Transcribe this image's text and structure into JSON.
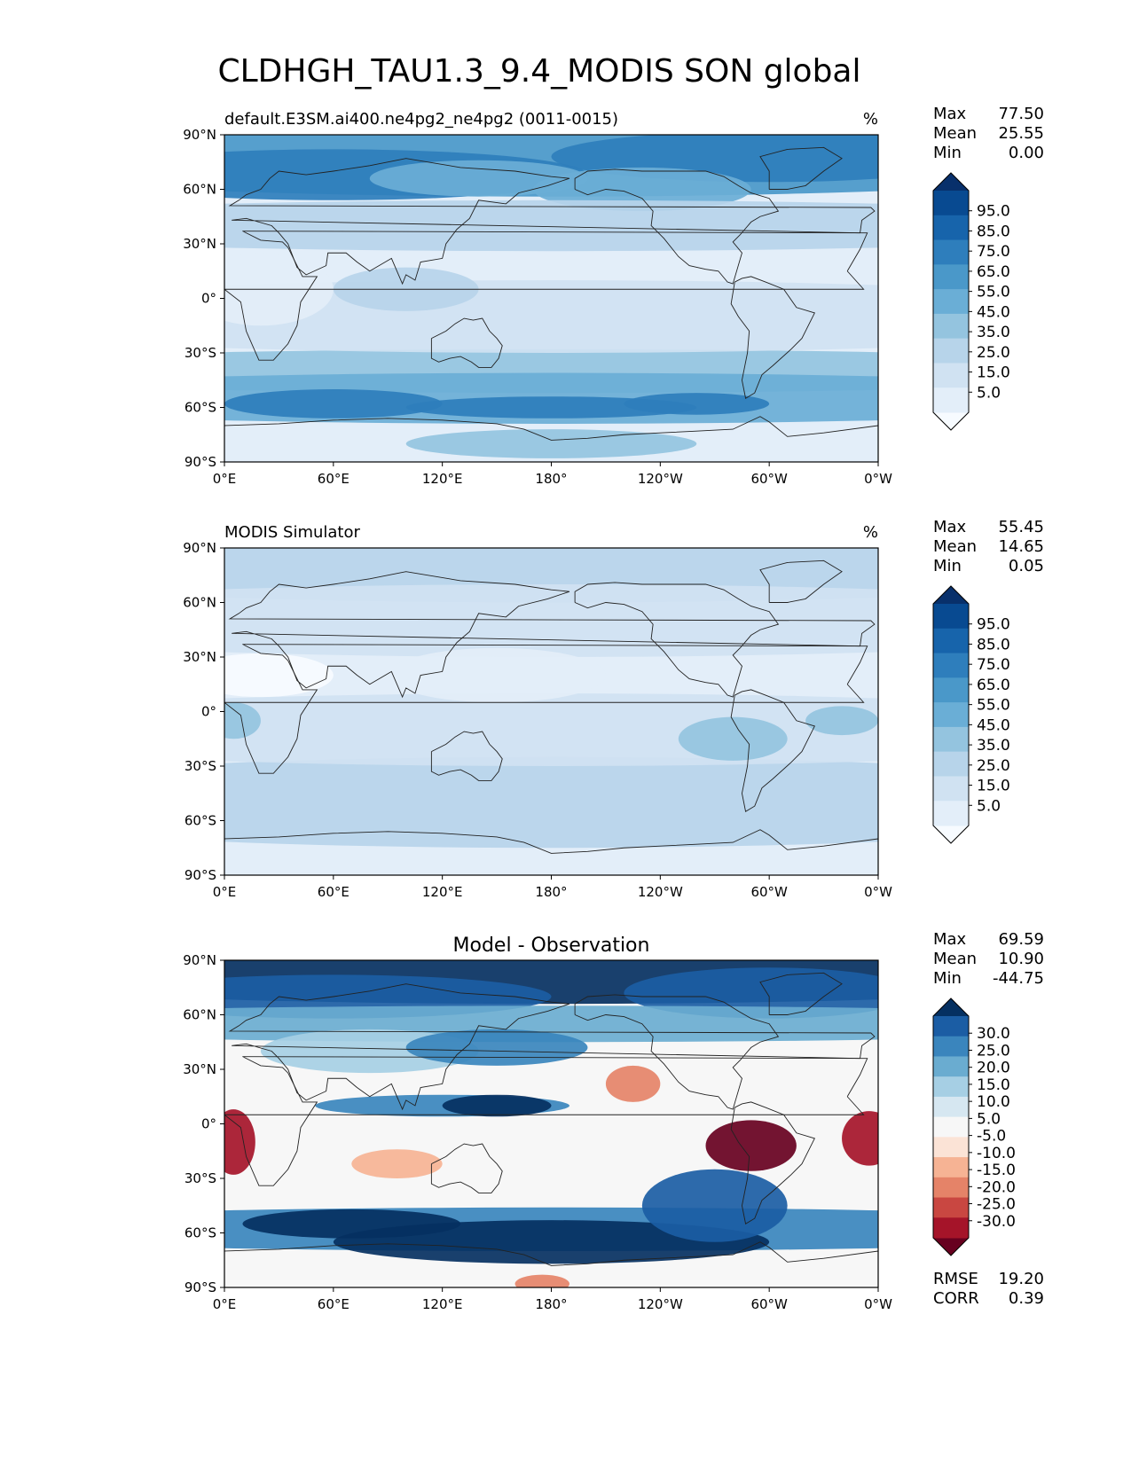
{
  "figure": {
    "title": "CLDHGH_TAU1.3_9.4_MODIS SON global"
  },
  "axes": {
    "lat_ticks": [
      "90°N",
      "60°N",
      "30°N",
      "0°",
      "30°S",
      "60°S",
      "90°S"
    ],
    "lon_ticks": [
      "0°E",
      "60°E",
      "120°E",
      "180°",
      "120°W",
      "60°W",
      "0°W"
    ]
  },
  "panels": [
    {
      "title": "default.E3SM.ai400.ne4pg2_ne4pg2 (0011-0015)",
      "units": "%",
      "stats": [
        {
          "label": "Max",
          "value": "77.50"
        },
        {
          "label": "Mean",
          "value": "25.55"
        },
        {
          "label": "Min",
          "value": "0.00"
        }
      ],
      "colorbar_labels": [
        "95.0",
        "85.0",
        "75.0",
        "65.0",
        "55.0",
        "45.0",
        "35.0",
        "25.0",
        "15.0",
        "5.0"
      ],
      "colorbar_colors": [
        "#f7fbff",
        "#e3eef9",
        "#d0e2f2",
        "#b7d4ea",
        "#94c4df",
        "#6aaed6",
        "#4a98c9",
        "#2e7ebc",
        "#1764ab",
        "#084a91",
        "#08306b"
      ]
    },
    {
      "title": "MODIS Simulator",
      "units": "%",
      "stats": [
        {
          "label": "Max",
          "value": "55.45"
        },
        {
          "label": "Mean",
          "value": "14.65"
        },
        {
          "label": "Min",
          "value": "0.05"
        }
      ],
      "colorbar_labels": [
        "95.0",
        "85.0",
        "75.0",
        "65.0",
        "55.0",
        "45.0",
        "35.0",
        "25.0",
        "15.0",
        "5.0"
      ],
      "colorbar_colors": [
        "#f7fbff",
        "#e3eef9",
        "#d0e2f2",
        "#b7d4ea",
        "#94c4df",
        "#6aaed6",
        "#4a98c9",
        "#2e7ebc",
        "#1764ab",
        "#084a91",
        "#08306b"
      ]
    },
    {
      "title": "Model - Observation",
      "units": "",
      "stats": [
        {
          "label": "Max",
          "value": "69.59"
        },
        {
          "label": "Mean",
          "value": "10.90"
        },
        {
          "label": "Min",
          "value": "-44.75"
        }
      ],
      "colorbar_labels": [
        "30.0",
        "25.0",
        "20.0",
        "15.0",
        "10.0",
        "5.0",
        "-5.0",
        "-10.0",
        "-15.0",
        "-20.0",
        "-25.0",
        "-30.0"
      ],
      "colorbar_colors": [
        "#67001f",
        "#a51429",
        "#c94741",
        "#e58368",
        "#f6b394",
        "#fbe3d6",
        "#f7f7f7",
        "#d6e7f1",
        "#a6cfe4",
        "#6aacd0",
        "#3a85bd",
        "#1b5da4",
        "#053061"
      ],
      "extra_stats": [
        {
          "label": "RMSE",
          "value": "19.20"
        },
        {
          "label": "CORR",
          "value": "0.39"
        }
      ]
    }
  ],
  "chart_data": [
    {
      "type": "heatmap",
      "title": "default.E3SM.ai400.ne4pg2_ne4pg2 (0011-0015)",
      "units": "%",
      "x": [
        0,
        60,
        120,
        180,
        240,
        300,
        360
      ],
      "y": [
        -90,
        -60,
        -30,
        0,
        30,
        60,
        90
      ],
      "levels": [
        5,
        15,
        25,
        35,
        45,
        55,
        65,
        75,
        85,
        95
      ],
      "max": 77.5,
      "mean": 25.55,
      "min": 0.0
    },
    {
      "type": "heatmap",
      "title": "MODIS Simulator",
      "units": "%",
      "x": [
        0,
        60,
        120,
        180,
        240,
        300,
        360
      ],
      "y": [
        -90,
        -60,
        -30,
        0,
        30,
        60,
        90
      ],
      "levels": [
        5,
        15,
        25,
        35,
        45,
        55,
        65,
        75,
        85,
        95
      ],
      "max": 55.45,
      "mean": 14.65,
      "min": 0.05
    },
    {
      "type": "heatmap",
      "title": "Model - Observation",
      "x": [
        0,
        60,
        120,
        180,
        240,
        300,
        360
      ],
      "y": [
        -90,
        -60,
        -30,
        0,
        30,
        60,
        90
      ],
      "levels": [
        -30,
        -25,
        -20,
        -15,
        -10,
        -5,
        5,
        10,
        15,
        20,
        25,
        30
      ],
      "max": 69.59,
      "mean": 10.9,
      "min": -44.75,
      "rmse": 19.2,
      "corr": 0.39
    }
  ]
}
